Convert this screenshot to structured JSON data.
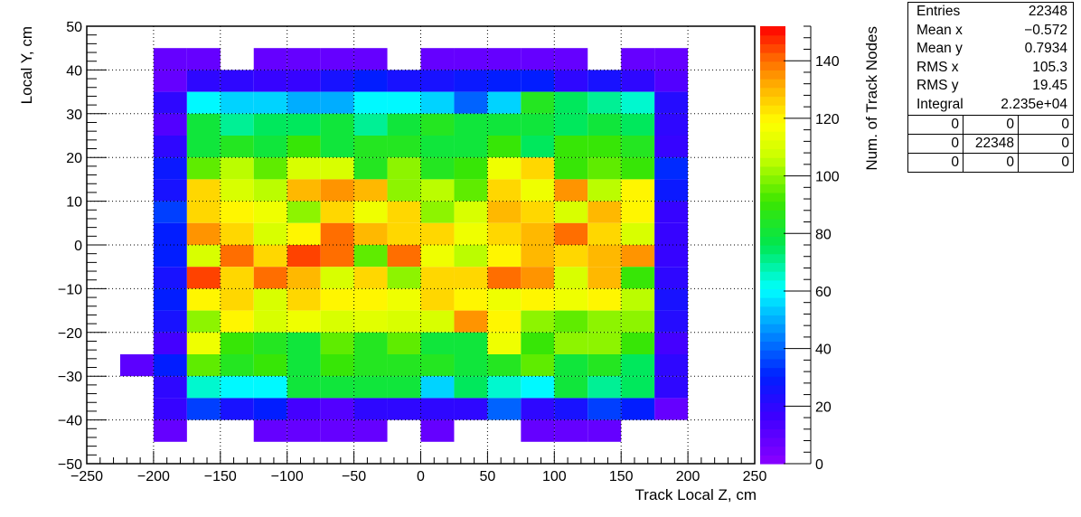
{
  "chart_data": {
    "type": "heatmap",
    "title": "",
    "xlabel": "Track Local Z, cm",
    "ylabel": "Local Y, cm",
    "zlabel": "Num. of Track Nodes",
    "xlim": [
      -250,
      250
    ],
    "ylim": [
      -50,
      50
    ],
    "zlim": [
      0,
      152
    ],
    "grid": true,
    "x_ticks": [
      -250,
      -200,
      -150,
      -100,
      -50,
      0,
      50,
      100,
      150,
      200,
      250
    ],
    "x_tick_labels": [
      "−250",
      "−200",
      "−150",
      "−100",
      "−50",
      "0",
      "50",
      "100",
      "150",
      "200",
      "250"
    ],
    "y_ticks": [
      -50,
      -40,
      -30,
      -20,
      -10,
      0,
      10,
      20,
      30,
      40,
      50
    ],
    "y_tick_labels": [
      "−50",
      "−40",
      "−30",
      "−20",
      "−10",
      "0",
      "10",
      "20",
      "30",
      "40",
      "50"
    ],
    "z_ticks": [
      0,
      20,
      40,
      60,
      80,
      100,
      120,
      140
    ],
    "z_tick_labels": [
      "0",
      "20",
      "40",
      "60",
      "80",
      "100",
      "120",
      "140"
    ],
    "x_bin_edges": [
      -225,
      -200,
      -175,
      -150,
      -125,
      -100,
      -75,
      -50,
      -25,
      0,
      25,
      50,
      75,
      100,
      125,
      150,
      175,
      200
    ],
    "y_bin_edges": [
      -45,
      -40,
      -35,
      -30,
      -25,
      -20,
      -15,
      -10,
      -5,
      0,
      5,
      10,
      15,
      20,
      25,
      30,
      35,
      40,
      45
    ],
    "values": [
      [
        0,
        8,
        8,
        0,
        8,
        8,
        8,
        8,
        0,
        8,
        8,
        8,
        8,
        8,
        0,
        8,
        8
      ],
      [
        0,
        8,
        20,
        20,
        18,
        18,
        25,
        30,
        25,
        25,
        28,
        30,
        30,
        20,
        25,
        20,
        12
      ],
      [
        0,
        20,
        60,
        55,
        55,
        50,
        50,
        60,
        60,
        55,
        40,
        55,
        85,
        75,
        70,
        65,
        22
      ],
      [
        0,
        12,
        80,
        70,
        75,
        75,
        80,
        70,
        80,
        85,
        80,
        80,
        80,
        75,
        80,
        75,
        20
      ],
      [
        0,
        20,
        80,
        85,
        80,
        90,
        80,
        85,
        85,
        80,
        80,
        90,
        75,
        90,
        90,
        85,
        18
      ],
      [
        0,
        28,
        95,
        105,
        95,
        110,
        110,
        85,
        100,
        85,
        90,
        115,
        125,
        90,
        95,
        90,
        32
      ],
      [
        0,
        25,
        125,
        110,
        105,
        130,
        135,
        130,
        100,
        105,
        95,
        125,
        115,
        135,
        105,
        120,
        28
      ],
      [
        0,
        35,
        125,
        120,
        115,
        100,
        125,
        115,
        125,
        100,
        110,
        130,
        125,
        110,
        130,
        120,
        18
      ],
      [
        0,
        30,
        135,
        125,
        110,
        120,
        140,
        130,
        125,
        125,
        115,
        125,
        130,
        140,
        125,
        110,
        18
      ],
      [
        0,
        30,
        110,
        140,
        125,
        145,
        140,
        95,
        140,
        115,
        105,
        120,
        130,
        125,
        130,
        135,
        18
      ],
      [
        0,
        25,
        145,
        125,
        140,
        130,
        110,
        125,
        100,
        125,
        125,
        140,
        135,
        110,
        130,
        90,
        20
      ],
      [
        0,
        30,
        120,
        125,
        110,
        125,
        120,
        120,
        115,
        125,
        120,
        115,
        120,
        115,
        120,
        105,
        25
      ],
      [
        0,
        25,
        100,
        120,
        110,
        115,
        110,
        112,
        110,
        110,
        135,
        120,
        100,
        95,
        100,
        100,
        22
      ],
      [
        0,
        15,
        115,
        90,
        85,
        80,
        95,
        85,
        95,
        80,
        80,
        115,
        90,
        100,
        100,
        90,
        15
      ],
      [
        10,
        30,
        95,
        85,
        90,
        80,
        90,
        85,
        85,
        85,
        80,
        85,
        95,
        80,
        85,
        75,
        20
      ],
      [
        0,
        20,
        65,
        60,
        60,
        80,
        80,
        80,
        80,
        55,
        75,
        65,
        60,
        80,
        70,
        75,
        20
      ],
      [
        0,
        18,
        35,
        25,
        30,
        15,
        12,
        20,
        20,
        20,
        20,
        40,
        20,
        25,
        35,
        30,
        8
      ],
      [
        0,
        8,
        0,
        0,
        8,
        8,
        8,
        8,
        0,
        8,
        0,
        0,
        8,
        8,
        8,
        0,
        0
      ]
    ],
    "stats": {
      "entries_label": "Entries",
      "entries": "22348",
      "mean_x_label": "Mean x",
      "mean_x": "−0.572",
      "mean_y_label": "Mean y",
      "mean_y": "0.7934",
      "rms_x_label": "RMS x",
      "rms_x": "105.3",
      "rms_y_label": "RMS y",
      "rms_y": "19.45",
      "integral_label": "Integral",
      "integral": "2.235e+04",
      "overflow_grid": [
        [
          "0",
          "0",
          "0"
        ],
        [
          "0",
          "22348",
          "0"
        ],
        [
          "0",
          "0",
          "0"
        ]
      ]
    }
  }
}
